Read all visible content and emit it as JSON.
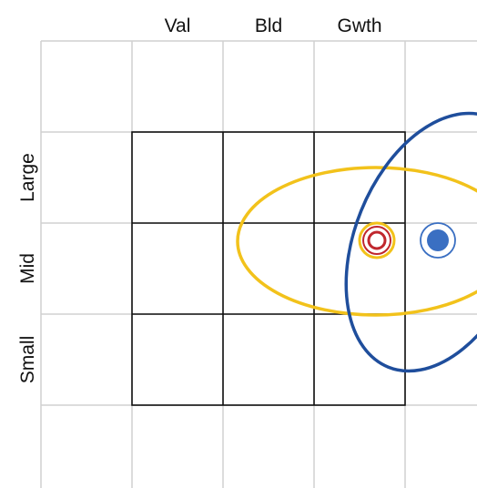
{
  "columns": {
    "value": "Val",
    "blend": "Bld",
    "growth": "Gwth"
  },
  "rows": {
    "large": "Large",
    "mid": "Mid",
    "small": "Small"
  },
  "colors": {
    "grid_light": "#d0d0d0",
    "grid_dark": "#111111",
    "blue": "#1f4e9c",
    "gold": "#f2c21b",
    "red": "#c0272d",
    "dot_blue": "#3a6fc2"
  }
}
